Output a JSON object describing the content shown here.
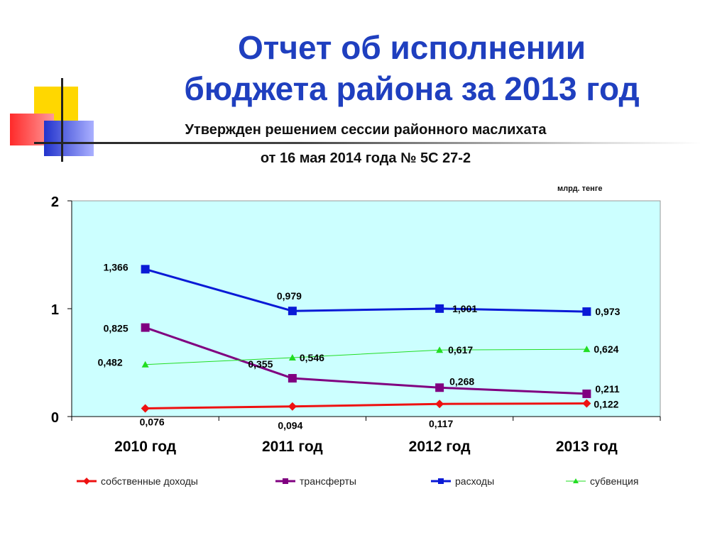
{
  "slide": {
    "title_line1": "Отчет об исполнении",
    "title_line2": "бюджета района за 2013 год",
    "subtitle_line1": "Утвержден решением сессии районного маслихата",
    "subtitle_line2": "от 16 мая 2014 года № 5С 27-2",
    "units": "млрд. тенге"
  },
  "chart_data": {
    "type": "line",
    "categories": [
      "2010 год",
      "2011 год",
      "2012 год",
      "2013 год"
    ],
    "ylim": [
      0,
      2
    ],
    "yticks": [
      0,
      1,
      2
    ],
    "ytick_labels": [
      "0",
      "1",
      "2"
    ],
    "grid": false,
    "legend_position": "bottom",
    "plot_background": "#ccffff",
    "series": [
      {
        "name": "собственные доходы",
        "values": [
          0.076,
          0.094,
          0.117,
          0.122
        ],
        "labels": [
          "0,076",
          "0,094",
          "0,117",
          "0,122"
        ],
        "color": "#ee1111",
        "marker": "diamond"
      },
      {
        "name": "трансферты",
        "values": [
          0.825,
          0.355,
          0.268,
          0.211
        ],
        "labels": [
          "0,825",
          "0,355",
          "0,268",
          "0,211"
        ],
        "color": "#800080",
        "marker": "square"
      },
      {
        "name": "расходы",
        "values": [
          1.366,
          0.979,
          1.001,
          0.973
        ],
        "labels": [
          "1,366",
          "0,979",
          "1,001",
          "0,973"
        ],
        "color": "#0a1ad6",
        "marker": "square"
      },
      {
        "name": "субвенция",
        "values": [
          0.482,
          0.546,
          0.617,
          0.624
        ],
        "labels": [
          "0,482",
          "0,546",
          "0,617",
          "0,624"
        ],
        "color": "#22dd22",
        "marker": "triangle"
      }
    ]
  }
}
